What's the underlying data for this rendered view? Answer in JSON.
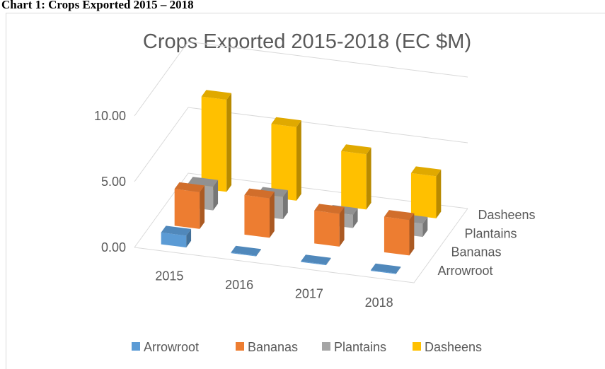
{
  "caption": "Chart 1: Crops Exported 2015 – 2018",
  "chart_data": {
    "type": "bar3d",
    "title": "Crops Exported 2015-2018 (EC $M)",
    "categories": [
      "2015",
      "2016",
      "2017",
      "2018"
    ],
    "series": [
      {
        "name": "Arrowroot",
        "color": "#5b9bd5",
        "values": [
          0.9,
          0.05,
          0.05,
          0.05
        ]
      },
      {
        "name": "Bananas",
        "color": "#ed7d31",
        "values": [
          2.8,
          3.0,
          2.5,
          2.7
        ]
      },
      {
        "name": "Plantains",
        "color": "#a5a5a5",
        "values": [
          1.8,
          1.7,
          1.0,
          1.0
        ]
      },
      {
        "name": "Dasheens",
        "color": "#ffc000",
        "values": [
          7.0,
          5.6,
          4.2,
          3.2
        ]
      }
    ],
    "ylim": [
      0,
      10
    ],
    "yticks": [
      {
        "value": 0,
        "label": "0.00"
      },
      {
        "value": 5,
        "label": "5.00"
      },
      {
        "value": 10,
        "label": "10.00"
      }
    ],
    "grid": true,
    "legend": "bottom"
  }
}
